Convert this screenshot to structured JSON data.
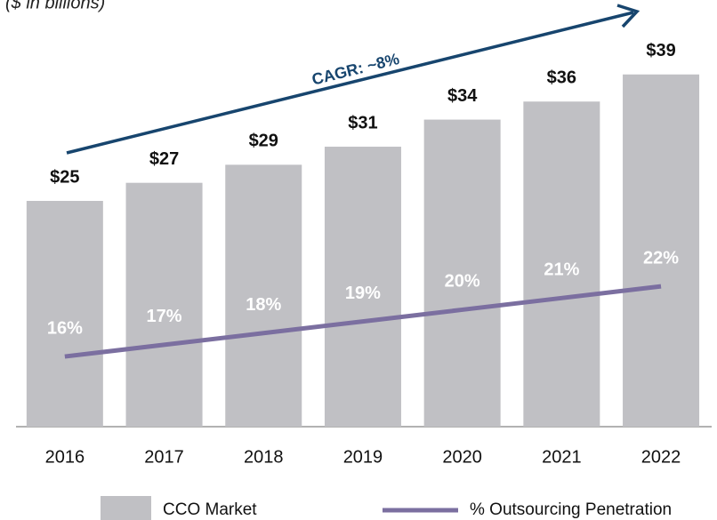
{
  "chart_data": {
    "type": "bar",
    "subtitle": "($ in billions)",
    "annotation": "CAGR: ~8%",
    "categories": [
      "2016",
      "2017",
      "2018",
      "2019",
      "2020",
      "2021",
      "2022"
    ],
    "series": [
      {
        "name": "CCO Market",
        "type": "bar",
        "color": "#c0c0c4",
        "values": [
          25,
          27,
          29,
          31,
          34,
          36,
          39
        ],
        "value_labels": [
          "$25",
          "$27",
          "$29",
          "$31",
          "$34",
          "$36",
          "$39"
        ]
      },
      {
        "name": "% Outsourcing Penetration",
        "type": "line",
        "axis": "y2",
        "color": "#7b6fa0",
        "values": [
          16,
          17,
          18,
          19,
          20,
          21,
          22
        ],
        "value_labels": [
          "16%",
          "17%",
          "18%",
          "19%",
          "20%",
          "21%",
          "22%"
        ]
      }
    ],
    "ylim": [
      0,
      47
    ],
    "y2lim": [
      10,
      46.3
    ]
  }
}
